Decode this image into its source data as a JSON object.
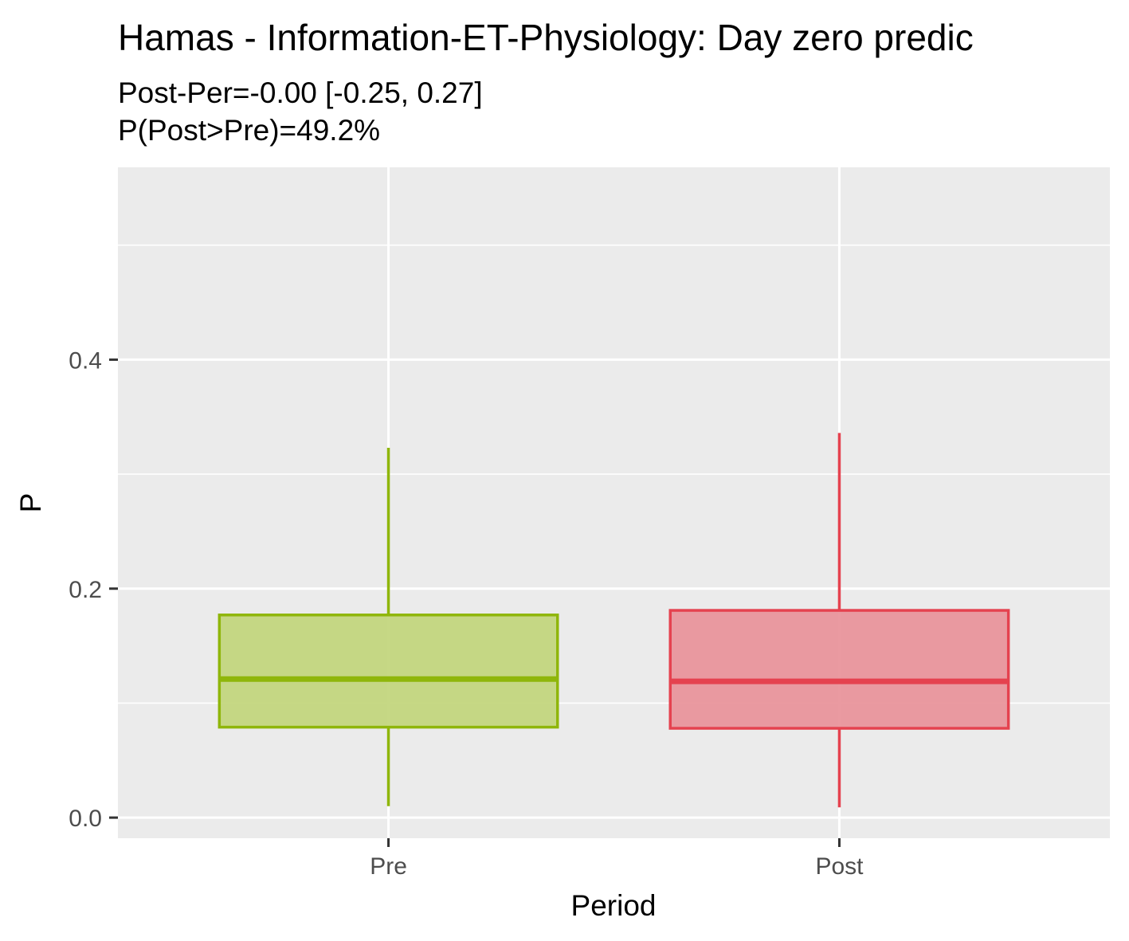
{
  "chart_data": {
    "type": "boxplot",
    "title": "Hamas - Information-ET-Physiology: Day zero predic",
    "subtitle_lines": [
      "Post-Per=-0.00 [-0.25, 0.27]",
      "P(Post>Pre)=49.2%"
    ],
    "xlabel": "Period",
    "ylabel": "P",
    "categories": [
      "Pre",
      "Post"
    ],
    "ylim": [
      -0.018,
      0.568
    ],
    "y_ticks": [
      0.0,
      0.2,
      0.4
    ],
    "y_tick_labels": [
      "0.0",
      "0.2",
      "0.4"
    ],
    "grid": true,
    "series": [
      {
        "category": "Pre",
        "whisker_low": 0.01,
        "q1": 0.079,
        "median": 0.121,
        "q3": 0.177,
        "whisker_high": 0.323,
        "color": "#8fb60a",
        "fill": "#c3d67e"
      },
      {
        "category": "Post",
        "whisker_low": 0.009,
        "q1": 0.078,
        "median": 0.119,
        "q3": 0.181,
        "whisker_high": 0.336,
        "color": "#e5424f",
        "fill": "#e9959c"
      }
    ]
  }
}
